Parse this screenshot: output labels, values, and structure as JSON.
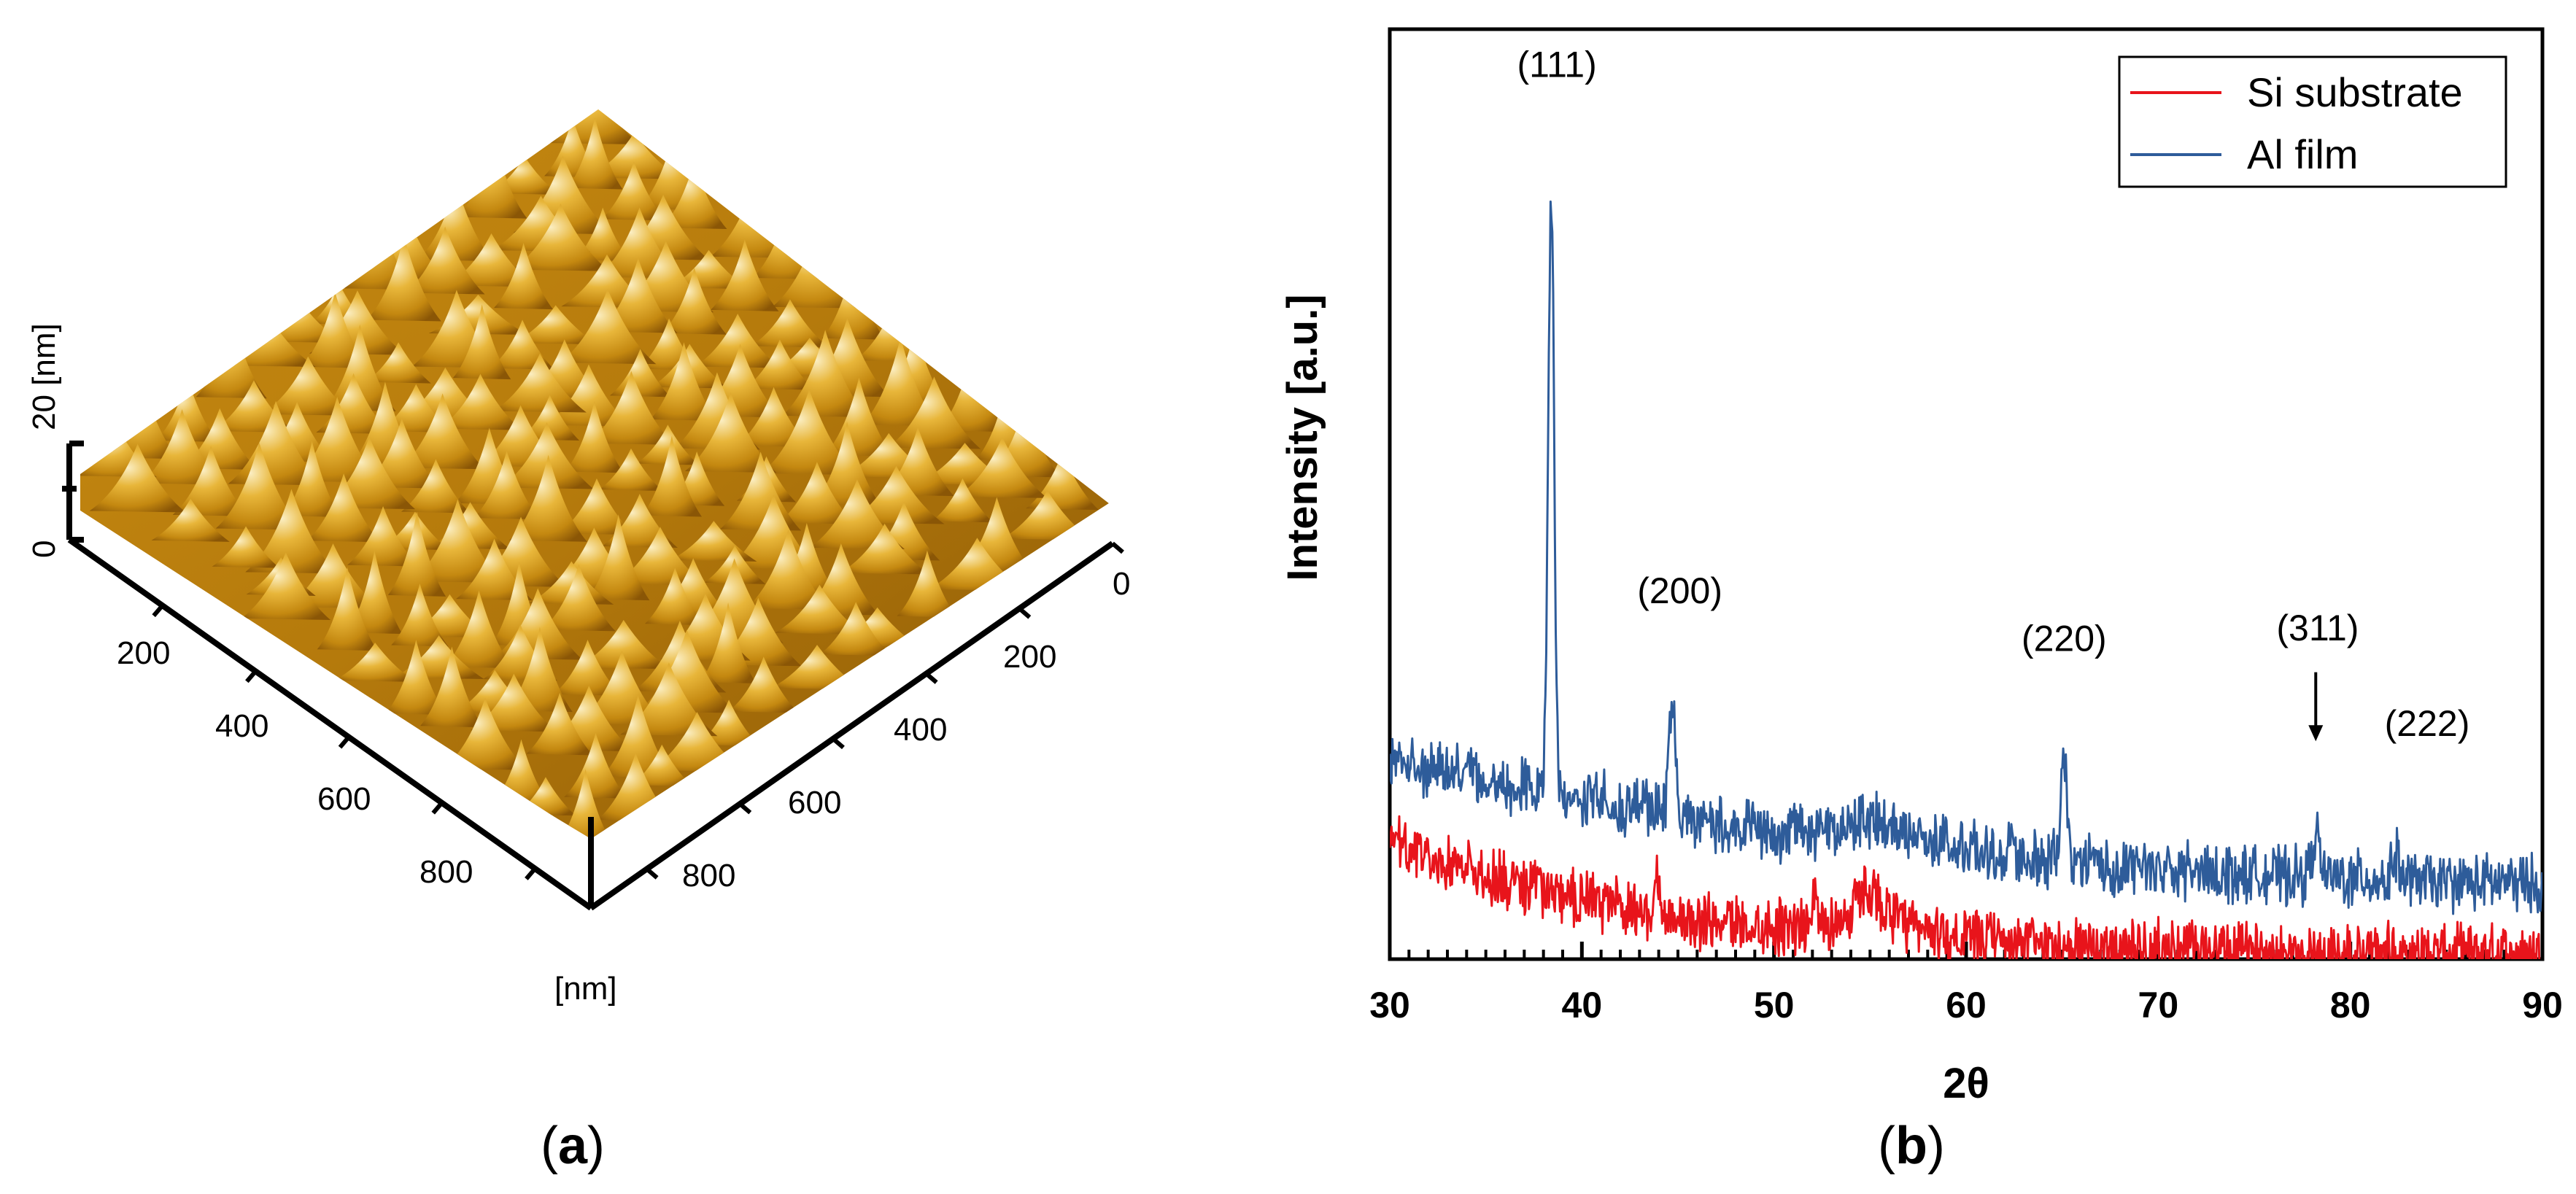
{
  "figure": {
    "panel_a_label": {
      "open": "(",
      "letter": "a",
      "close": ")"
    },
    "panel_b_label": {
      "open": "(",
      "letter": "b",
      "close": ")"
    }
  },
  "colors": {
    "si_substrate": "#e8141b",
    "al_film": "#2e5c9a",
    "afm_light": "#f6dfa0",
    "afm_mid": "#d9a118",
    "afm_dark": "#7a4a05"
  },
  "afm": {
    "z_axis_label": "20  [nm]",
    "z_ticks": [
      "0",
      "20"
    ],
    "x_ticks": [
      "200",
      "400",
      "600",
      "800"
    ],
    "y_ticks": [
      "0",
      "200",
      "400",
      "600",
      "800"
    ],
    "unit_label": "[nm]"
  },
  "chart_data": {
    "type": "line",
    "xlabel": "2θ",
    "ylabel": "Intensity [a.u.]",
    "xlim": [
      30,
      90
    ],
    "xticks": [
      30,
      40,
      50,
      60,
      70,
      80,
      90
    ],
    "legend_position": "top-right",
    "series": [
      {
        "name": "Si substrate",
        "color": "#e8141b",
        "baseline": [
          [
            30,
            2.15
          ],
          [
            33,
            1.85
          ],
          [
            36,
            1.45
          ],
          [
            40,
            1.1
          ],
          [
            43,
            0.9
          ],
          [
            46,
            0.7
          ],
          [
            50,
            0.62
          ],
          [
            53,
            0.68
          ],
          [
            55,
            0.85
          ],
          [
            57,
            0.58
          ],
          [
            60,
            0.4
          ],
          [
            65,
            0.25
          ],
          [
            70,
            0.2
          ],
          [
            75,
            0.16
          ],
          [
            80,
            0.13
          ],
          [
            85,
            0.12
          ],
          [
            90,
            0.12
          ]
        ],
        "peaks": [
          [
            43.9,
            1.0,
            0.15
          ],
          [
            52.1,
            0.65,
            0.15
          ],
          [
            55.0,
            0.45,
            0.9
          ]
        ]
      },
      {
        "name": "Al film",
        "color": "#2e5c9a",
        "baseline": [
          [
            30,
            3.7
          ],
          [
            33,
            3.55
          ],
          [
            36,
            3.3
          ],
          [
            38,
            3.2
          ],
          [
            40,
            3.05
          ],
          [
            43,
            2.85
          ],
          [
            46,
            2.6
          ],
          [
            50,
            2.35
          ],
          [
            53,
            2.45
          ],
          [
            55,
            2.65
          ],
          [
            57,
            2.35
          ],
          [
            60,
            2.1
          ],
          [
            65,
            1.85
          ],
          [
            70,
            1.7
          ],
          [
            75,
            1.6
          ],
          [
            80,
            1.52
          ],
          [
            85,
            1.45
          ],
          [
            90,
            1.42
          ]
        ],
        "peaks": [
          [
            38.4,
            11.2,
            0.22
          ],
          [
            44.7,
            1.9,
            0.25
          ],
          [
            65.1,
            1.65,
            0.25
          ],
          [
            78.2,
            0.85,
            0.25
          ],
          [
            82.4,
            0.45,
            0.25
          ]
        ]
      }
    ],
    "annotations": [
      {
        "text": "(111)",
        "x": 38.7,
        "y": 16.6
      },
      {
        "text": "(200)",
        "x": 45.1,
        "y": 6.7
      },
      {
        "text": "(220)",
        "x": 65.1,
        "y": 5.8
      },
      {
        "text": "(311)",
        "x": 78.3,
        "y": 6.0
      },
      {
        "text": "(222)",
        "x": 84.0,
        "y": 4.2
      }
    ],
    "arrow": {
      "label": "(311)",
      "x": 78.2,
      "y_from": 5.4,
      "y_to": 4.1
    }
  }
}
